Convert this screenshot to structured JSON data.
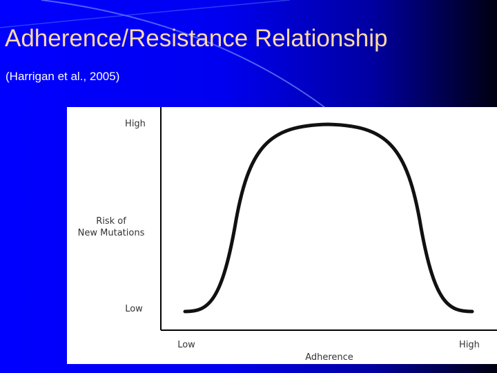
{
  "header": {
    "title": "Adherence/Resistance Relationship",
    "subtitle": "(Harrigan et al., 2005)"
  },
  "figure": {
    "y_axis": {
      "title_lines": [
        "Risk of",
        "New Mutations"
      ],
      "high": "High",
      "low": "Low"
    },
    "x_axis": {
      "title": "Adherence",
      "low": "Low",
      "high": "High"
    }
  }
}
